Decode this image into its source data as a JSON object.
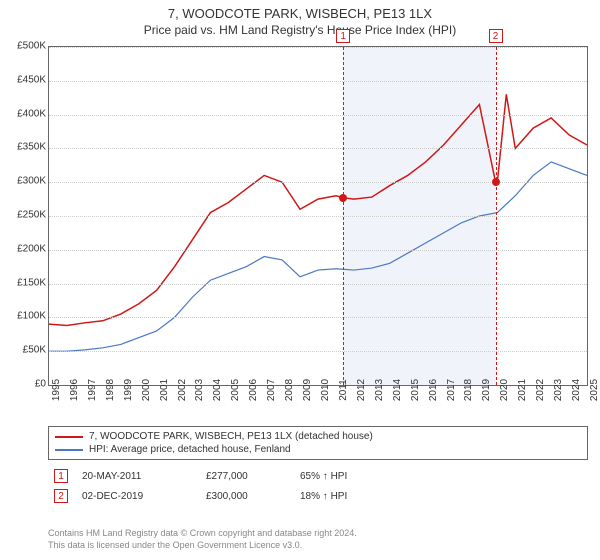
{
  "title_line1": "7, WOODCOTE PARK, WISBECH, PE13 1LX",
  "title_line2": "Price paid vs. HM Land Registry's House Price Index (HPI)",
  "chart": {
    "type": "line",
    "background_color": "#ffffff",
    "grid_color": "#cccccc",
    "border_color": "#666666",
    "plot_band_color": "#f0f4fa",
    "x": {
      "min": 1995,
      "max": 2025,
      "ticks": [
        1995,
        1996,
        1997,
        1998,
        1999,
        2000,
        2001,
        2002,
        2003,
        2004,
        2005,
        2006,
        2007,
        2008,
        2009,
        2010,
        2011,
        2012,
        2013,
        2014,
        2015,
        2016,
        2017,
        2018,
        2019,
        2020,
        2021,
        2022,
        2023,
        2024,
        2025
      ]
    },
    "y": {
      "min": 0,
      "max": 500000,
      "tick_step": 50000,
      "labels": [
        "£0",
        "£50K",
        "£100K",
        "£150K",
        "£200K",
        "£250K",
        "£300K",
        "£350K",
        "£400K",
        "£450K",
        "£500K"
      ]
    },
    "plot_band": {
      "from": 2011.4,
      "to": 2019.9
    },
    "series": [
      {
        "id": "price_paid",
        "label": "7, WOODCOTE PARK, WISBECH, PE13 1LX (detached house)",
        "color": "#d01818",
        "line_width": 1.5,
        "points": [
          [
            1995,
            90000
          ],
          [
            1996,
            88000
          ],
          [
            1997,
            92000
          ],
          [
            1998,
            95000
          ],
          [
            1999,
            105000
          ],
          [
            2000,
            120000
          ],
          [
            2001,
            140000
          ],
          [
            2002,
            175000
          ],
          [
            2003,
            215000
          ],
          [
            2004,
            255000
          ],
          [
            2005,
            270000
          ],
          [
            2006,
            290000
          ],
          [
            2007,
            310000
          ],
          [
            2008,
            300000
          ],
          [
            2009,
            260000
          ],
          [
            2010,
            275000
          ],
          [
            2011,
            280000
          ],
          [
            2011.4,
            277000
          ],
          [
            2012,
            275000
          ],
          [
            2013,
            278000
          ],
          [
            2014,
            295000
          ],
          [
            2015,
            310000
          ],
          [
            2016,
            330000
          ],
          [
            2017,
            355000
          ],
          [
            2018,
            385000
          ],
          [
            2019,
            415000
          ],
          [
            2019.9,
            300000
          ],
          [
            2020,
            300000
          ],
          [
            2020.5,
            430000
          ],
          [
            2021,
            350000
          ],
          [
            2022,
            380000
          ],
          [
            2023,
            395000
          ],
          [
            2024,
            370000
          ],
          [
            2025,
            355000
          ]
        ]
      },
      {
        "id": "hpi",
        "label": "HPI: Average price, detached house, Fenland",
        "color": "#4a78c4",
        "line_width": 1.2,
        "points": [
          [
            1995,
            50000
          ],
          [
            1996,
            50000
          ],
          [
            1997,
            52000
          ],
          [
            1998,
            55000
          ],
          [
            1999,
            60000
          ],
          [
            2000,
            70000
          ],
          [
            2001,
            80000
          ],
          [
            2002,
            100000
          ],
          [
            2003,
            130000
          ],
          [
            2004,
            155000
          ],
          [
            2005,
            165000
          ],
          [
            2006,
            175000
          ],
          [
            2007,
            190000
          ],
          [
            2008,
            185000
          ],
          [
            2009,
            160000
          ],
          [
            2010,
            170000
          ],
          [
            2011,
            172000
          ],
          [
            2012,
            170000
          ],
          [
            2013,
            173000
          ],
          [
            2014,
            180000
          ],
          [
            2015,
            195000
          ],
          [
            2016,
            210000
          ],
          [
            2017,
            225000
          ],
          [
            2018,
            240000
          ],
          [
            2019,
            250000
          ],
          [
            2020,
            255000
          ],
          [
            2021,
            280000
          ],
          [
            2022,
            310000
          ],
          [
            2023,
            330000
          ],
          [
            2024,
            320000
          ],
          [
            2025,
            310000
          ]
        ]
      }
    ],
    "markers": [
      {
        "n": "1",
        "x": 2011.4,
        "y": 277000,
        "color": "#d01818",
        "date": "20-MAY-2011",
        "price": "£277,000",
        "pct": "65% ↑ HPI"
      },
      {
        "n": "2",
        "x": 2019.9,
        "y": 300000,
        "color": "#d01818",
        "date": "02-DEC-2019",
        "price": "£300,000",
        "pct": "18% ↑ HPI"
      }
    ]
  },
  "footnote_line1": "Contains HM Land Registry data © Crown copyright and database right 2024.",
  "footnote_line2": "This data is licensed under the Open Government Licence v3.0."
}
